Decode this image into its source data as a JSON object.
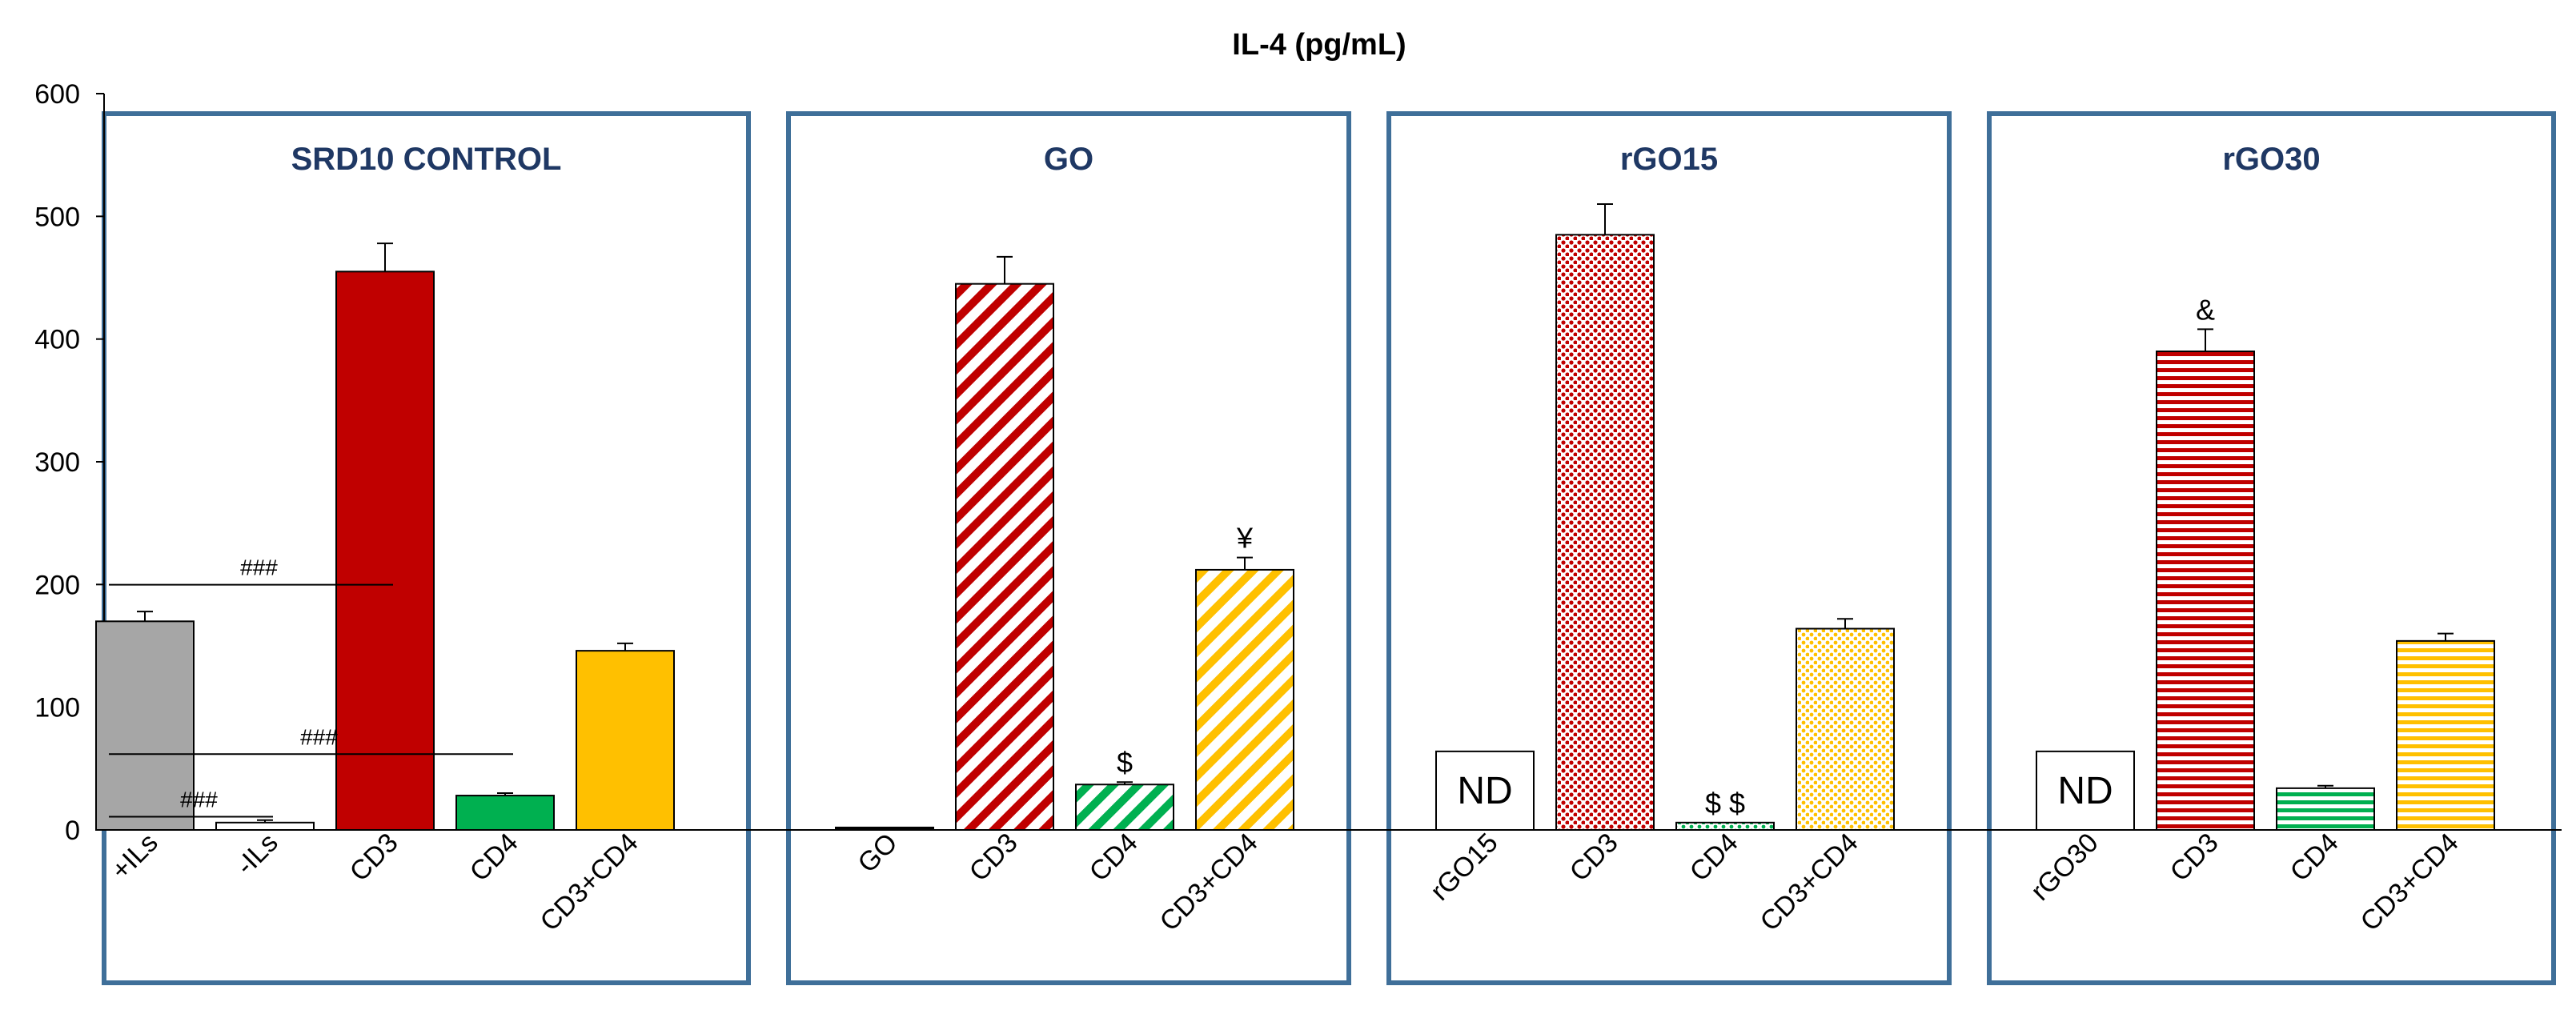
{
  "chart_data": {
    "type": "bar",
    "title": "IL-4 (pg/mL)",
    "xlabel": "",
    "ylabel": "",
    "ylim": [
      0,
      600
    ],
    "yticks": [
      0,
      100,
      200,
      300,
      400,
      500,
      600
    ],
    "grid": false,
    "panels": [
      {
        "title": "SRD10 CONTROL",
        "bars": [
          {
            "label": "+ILs",
            "value": 170,
            "error": 8,
            "color": "#a6a6a6",
            "pattern": "solid"
          },
          {
            "label": "-ILs",
            "value": 6,
            "error": 2,
            "color": "#ffffff",
            "pattern": "solid"
          },
          {
            "label": "CD3",
            "value": 455,
            "error": 23,
            "color": "#c00000",
            "pattern": "solid"
          },
          {
            "label": "CD4",
            "value": 28,
            "error": 2,
            "color": "#00b050",
            "pattern": "solid"
          },
          {
            "label": "CD3+CD4",
            "value": 146,
            "error": 6,
            "color": "#ffc000",
            "pattern": "solid"
          }
        ],
        "annotations": [
          {
            "text": "###",
            "value": 205,
            "from": 0,
            "to": 2
          },
          {
            "text": "###",
            "value": 67,
            "from": 0,
            "to": 3
          },
          {
            "text": "###",
            "value": 16,
            "from": 0,
            "to": 1
          }
        ]
      },
      {
        "title": "GO",
        "bars": [
          {
            "label": "GO",
            "value": 2,
            "error": 0,
            "color": "#000000",
            "pattern": "solid"
          },
          {
            "label": "CD3",
            "value": 445,
            "error": 22,
            "color": "#c00000",
            "pattern": "diagonal"
          },
          {
            "label": "CD4",
            "value": 37,
            "error": 2,
            "color": "#00b050",
            "pattern": "diagonal",
            "marker": "$"
          },
          {
            "label": "CD3+CD4",
            "value": 212,
            "error": 10,
            "color": "#ffc000",
            "pattern": "diagonal",
            "marker": "¥"
          }
        ]
      },
      {
        "title": "rGO15",
        "bars": [
          {
            "label": "rGO15",
            "value": 64,
            "error": 0,
            "color": "#ffffff",
            "pattern": "solid",
            "text": "ND"
          },
          {
            "label": "CD3",
            "value": 485,
            "error": 25,
            "color": "#c00000",
            "pattern": "dots"
          },
          {
            "label": "CD4",
            "value": 6,
            "error": 0,
            "color": "#00b050",
            "pattern": "dots",
            "marker": "$ $"
          },
          {
            "label": "CD3+CD4",
            "value": 164,
            "error": 8,
            "color": "#ffc000",
            "pattern": "dots"
          }
        ]
      },
      {
        "title": "rGO30",
        "bars": [
          {
            "label": "rGO30",
            "value": 64,
            "error": 0,
            "color": "#ffffff",
            "pattern": "solid",
            "text": "ND"
          },
          {
            "label": "CD3",
            "value": 390,
            "error": 18,
            "color": "#c00000",
            "pattern": "horizontal",
            "marker": "&"
          },
          {
            "label": "CD4",
            "value": 34,
            "error": 2,
            "color": "#00b050",
            "pattern": "horizontal"
          },
          {
            "label": "CD3+CD4",
            "value": 154,
            "error": 6,
            "color": "#ffc000",
            "pattern": "horizontal"
          }
        ]
      }
    ]
  }
}
